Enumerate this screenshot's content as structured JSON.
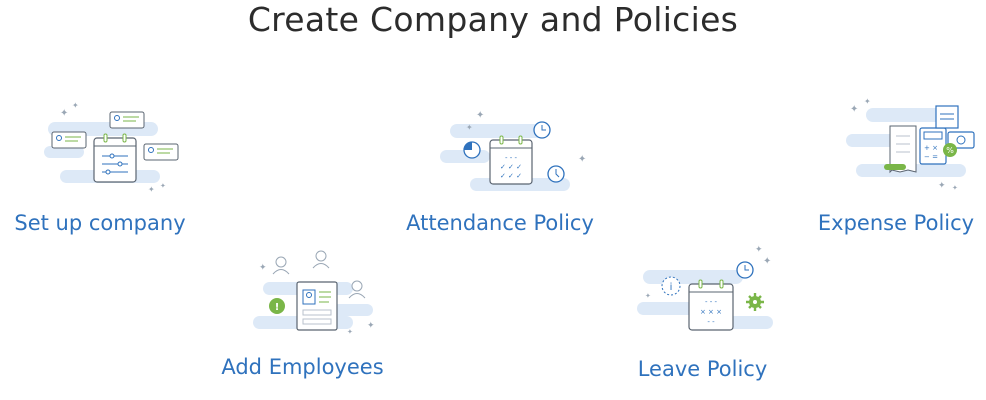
{
  "page": {
    "title": "Create Company and Policies"
  },
  "colors": {
    "accent_blue": "#2f72bd",
    "icon_green": "#7ab648",
    "cloud": "#dde9f7"
  },
  "cards": [
    {
      "label": "Set up company",
      "icon": "company-setup-icon"
    },
    {
      "label": "Attendance Policy",
      "icon": "attendance-calendar-icon"
    },
    {
      "label": "Expense Policy",
      "icon": "expense-calculator-icon"
    },
    {
      "label": "Add Employees",
      "icon": "add-employees-icon"
    },
    {
      "label": "Leave Policy",
      "icon": "leave-calendar-icon"
    }
  ]
}
